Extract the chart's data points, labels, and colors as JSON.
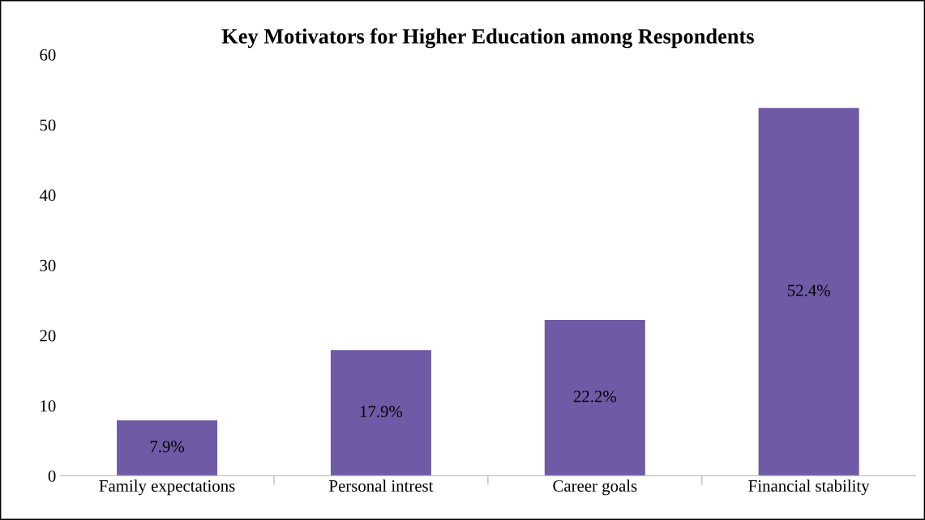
{
  "chart_data": {
    "type": "bar",
    "title": "Key Motivators for Higher Education among Respondents",
    "categories": [
      "Family expectations",
      "Personal intrest",
      "Career goals",
      "Financial stability"
    ],
    "values": [
      7.9,
      17.9,
      22.2,
      52.4
    ],
    "value_labels": [
      "7.9%",
      "17.9%",
      "22.2%",
      "52.4%"
    ],
    "color": "#6f5aa6",
    "ylim": [
      0,
      60
    ],
    "yticks": [
      0,
      10,
      20,
      30,
      40,
      50,
      60
    ],
    "grid": false
  }
}
